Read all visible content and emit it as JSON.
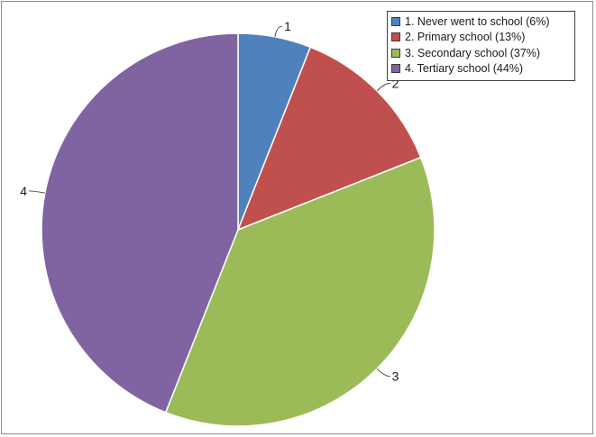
{
  "chart_data": {
    "type": "pie",
    "title": "",
    "categories": [
      "1. Never went to school (6%)",
      "2. Primary school (13%)",
      "3. Secondary school (37%)",
      "4. Tertiary school (44%)"
    ],
    "values": [
      6,
      13,
      37,
      44
    ],
    "slice_labels": [
      "1",
      "2",
      "3",
      "4"
    ],
    "colors": [
      "#4f81bd",
      "#c0504d",
      "#9bbb59",
      "#8064a2"
    ],
    "legend_placement": "top-right"
  }
}
